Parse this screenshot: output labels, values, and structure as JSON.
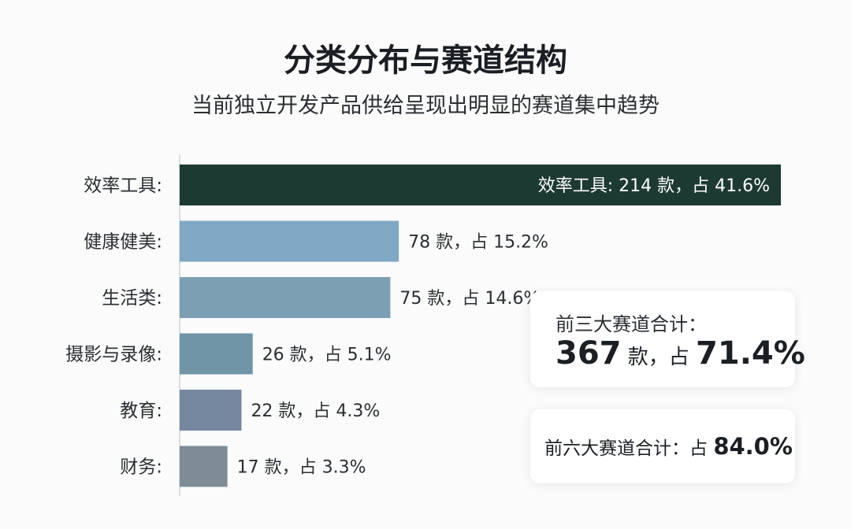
{
  "header": {
    "title": "分类分布与赛道结构",
    "subtitle": "当前独立开发产品供给呈现出明显的赛道集中趋势"
  },
  "chart_data": {
    "type": "bar",
    "orientation": "horizontal",
    "categories": [
      "效率工具",
      "健康健美",
      "生活类",
      "摄影与录像",
      "教育",
      "财务"
    ],
    "category_labels": [
      "效率工具:",
      "健康健美:",
      "生活类:",
      "摄影与录像:",
      "教育:",
      "财务:"
    ],
    "values": [
      214,
      78,
      75,
      26,
      22,
      17
    ],
    "percentages": [
      41.6,
      15.2,
      14.6,
      5.1,
      4.3,
      3.3
    ],
    "data_labels": [
      "效率工具: 214 款，占 41.6%",
      "78 款，占 15.2%",
      "75 款，占 14.6%",
      "26 款，占 5.1%",
      "22 款，占 4.3%",
      "17 款，占 3.3%"
    ],
    "colors": [
      "#1d3a32",
      "#80a8c4",
      "#7c9fb3",
      "#6f95a6",
      "#75879e",
      "#7e8c96"
    ],
    "xlim": [
      0,
      214
    ],
    "grid": false,
    "legend": "none"
  },
  "cards": {
    "top3": {
      "label": "前三大赛道合计：",
      "count": "367",
      "unit": " 款，占 ",
      "percent": "71.4%"
    },
    "top6": {
      "label": "前六大赛道合计：占 ",
      "percent": "84.0%"
    }
  }
}
